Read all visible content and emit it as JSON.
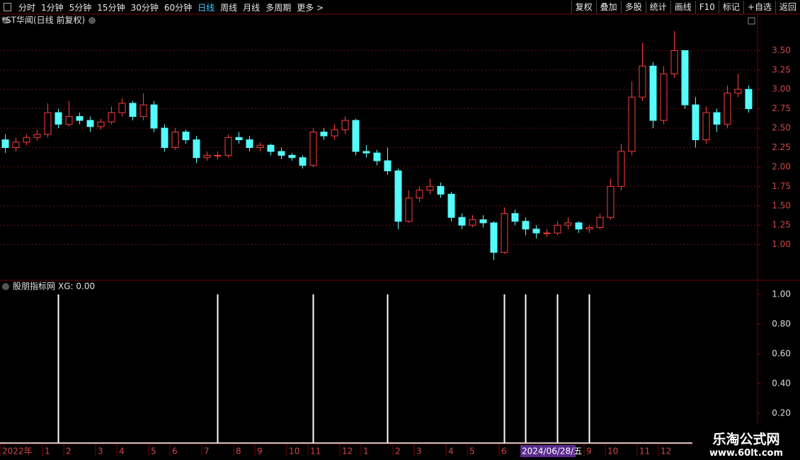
{
  "toolbar": {
    "left": [
      "分时",
      "1分钟",
      "5分钟",
      "15分钟",
      "30分钟",
      "60分钟",
      "日线",
      "周线",
      "月线",
      "多周期",
      "更多 >"
    ],
    "active": "日线",
    "right": [
      "复权",
      "叠加",
      "多股",
      "统计",
      "画线",
      "F10",
      "标记",
      "+自选",
      "返回"
    ]
  },
  "cursor_date": "2024/06/28/五",
  "watermark": {
    "title": "乐淘公式网",
    "url": "www.60lt.com"
  },
  "chart_data": [
    {
      "type": "candlestick",
      "title": "*ST华闻(日线 前复权)",
      "up_color": "#ff3c3c",
      "down_color": "#54fcfc",
      "grid": true,
      "ylim": [
        0.55,
        3.95
      ],
      "yticks": [
        {
          "value": 1,
          "label": "1.00"
        },
        {
          "value": 1.25,
          "label": "1.25"
        },
        {
          "value": 1.5,
          "label": "1.50"
        },
        {
          "value": 1.75,
          "label": "1.75"
        },
        {
          "value": 2,
          "label": "2.00"
        },
        {
          "value": 2.25,
          "label": "2.25"
        },
        {
          "value": 2.5,
          "label": "2.50"
        },
        {
          "value": 2.75,
          "label": "2.75"
        },
        {
          "value": 3,
          "label": "3.00"
        },
        {
          "value": 3.25,
          "label": "3.25"
        },
        {
          "value": 3.5,
          "label": "3.50"
        }
      ],
      "open": [
        2.35,
        2.25,
        2.32,
        2.38,
        2.42,
        2.7,
        2.55,
        2.65,
        2.6,
        2.52,
        2.58,
        2.7,
        2.82,
        2.65,
        2.8,
        2.5,
        2.25,
        2.45,
        2.35,
        2.12,
        2.15,
        2.15,
        2.38,
        2.35,
        2.25,
        2.28,
        2.2,
        2.15,
        2.12,
        2.02,
        2.45,
        2.4,
        2.48,
        2.6,
        2.2,
        2.18,
        2.08,
        1.95,
        1.3,
        1.6,
        1.7,
        1.75,
        1.65,
        1.35,
        1.25,
        1.32,
        1.28,
        0.9,
        1.4,
        1.3,
        1.2,
        1.15,
        1.15,
        1.25,
        1.28,
        1.2,
        1.22,
        1.35,
        1.75,
        2.2,
        2.9,
        3.3,
        2.6,
        3.2,
        3.5,
        2.8,
        2.35,
        2.7,
        2.55,
        2.95,
        3.0
      ],
      "high": [
        2.42,
        2.38,
        2.42,
        2.48,
        2.82,
        2.75,
        2.85,
        2.7,
        2.65,
        2.62,
        2.78,
        2.88,
        2.85,
        2.95,
        2.85,
        2.55,
        2.5,
        2.48,
        2.4,
        2.2,
        2.2,
        2.42,
        2.45,
        2.4,
        2.32,
        2.3,
        2.25,
        2.18,
        2.15,
        2.5,
        2.5,
        2.55,
        2.65,
        2.62,
        2.28,
        2.22,
        2.25,
        1.98,
        1.7,
        1.75,
        1.85,
        1.8,
        1.68,
        1.4,
        1.38,
        1.38,
        1.3,
        1.48,
        1.45,
        1.35,
        1.25,
        1.2,
        1.3,
        1.35,
        1.3,
        1.25,
        1.4,
        1.85,
        2.3,
        3.1,
        3.6,
        3.35,
        3.3,
        3.75,
        3.5,
        2.9,
        2.78,
        2.75,
        3.05,
        3.2,
        3.05
      ],
      "low": [
        2.18,
        2.2,
        2.28,
        2.34,
        2.38,
        2.5,
        2.52,
        2.55,
        2.45,
        2.48,
        2.55,
        2.65,
        2.6,
        2.6,
        2.45,
        2.2,
        2.22,
        2.3,
        2.05,
        2.08,
        2.1,
        2.12,
        2.3,
        2.2,
        2.2,
        2.15,
        2.1,
        2.08,
        1.98,
        2.0,
        2.35,
        2.35,
        2.42,
        2.15,
        2.12,
        2.02,
        1.9,
        1.2,
        1.28,
        1.55,
        1.65,
        1.6,
        1.3,
        1.2,
        1.22,
        1.22,
        0.8,
        0.88,
        1.25,
        1.12,
        1.08,
        1.1,
        1.12,
        1.2,
        1.15,
        1.15,
        1.2,
        1.32,
        1.7,
        2.15,
        2.85,
        2.5,
        2.55,
        3.15,
        2.75,
        2.25,
        2.3,
        2.45,
        2.5,
        2.9,
        2.7
      ],
      "close": [
        2.25,
        2.32,
        2.38,
        2.42,
        2.7,
        2.55,
        2.65,
        2.6,
        2.52,
        2.58,
        2.7,
        2.82,
        2.65,
        2.8,
        2.5,
        2.25,
        2.45,
        2.35,
        2.12,
        2.15,
        2.15,
        2.38,
        2.35,
        2.25,
        2.28,
        2.2,
        2.15,
        2.12,
        2.02,
        2.45,
        2.4,
        2.48,
        2.6,
        2.2,
        2.18,
        2.08,
        1.95,
        1.3,
        1.6,
        1.7,
        1.75,
        1.65,
        1.35,
        1.25,
        1.32,
        1.28,
        0.9,
        1.4,
        1.3,
        1.2,
        1.15,
        1.15,
        1.25,
        1.28,
        1.2,
        1.22,
        1.35,
        1.75,
        2.2,
        2.9,
        3.3,
        2.6,
        3.2,
        3.5,
        2.8,
        2.35,
        2.7,
        2.55,
        2.95,
        3.0,
        2.75
      ]
    },
    {
      "type": "bar",
      "title": "股朋指标网",
      "annotation": "XG: 0.00",
      "color": "#ffffff",
      "grid": false,
      "ylim": [
        0,
        1.09
      ],
      "yticks": [
        {
          "value": 0.2,
          "label": "0.20"
        },
        {
          "value": 0.4,
          "label": "0.40"
        },
        {
          "value": 0.6,
          "label": "0.60"
        },
        {
          "value": 0.8,
          "label": "0.80"
        },
        {
          "value": 1,
          "label": "1.00"
        }
      ],
      "values": [
        0,
        0,
        0,
        0,
        0,
        1,
        0,
        0,
        0,
        0,
        0,
        0,
        0,
        0,
        0,
        0,
        0,
        0,
        0,
        0,
        1,
        0,
        0,
        0,
        0,
        0,
        0,
        0,
        0,
        1,
        0,
        0,
        0,
        0,
        0,
        0,
        1,
        0,
        0,
        0,
        0,
        0,
        0,
        0,
        0,
        0,
        0,
        1,
        0,
        1,
        0,
        0,
        1,
        0,
        0,
        1,
        0,
        0,
        0,
        0,
        0,
        0,
        0,
        0,
        0,
        0,
        0,
        0,
        0,
        0,
        0
      ],
      "xticks": [
        {
          "value": 0,
          "label": "2022年"
        },
        {
          "value": 4,
          "label": "1"
        },
        {
          "value": 6,
          "label": "2"
        },
        {
          "value": 9,
          "label": "3"
        },
        {
          "value": 11,
          "label": "4"
        },
        {
          "value": 14,
          "label": "5"
        },
        {
          "value": 16,
          "label": "6"
        },
        {
          "value": 19,
          "label": "7"
        },
        {
          "value": 22,
          "label": "8"
        },
        {
          "value": 24,
          "label": "9"
        },
        {
          "value": 27,
          "label": "10"
        },
        {
          "value": 29,
          "label": "11"
        },
        {
          "value": 32,
          "label": "12"
        },
        {
          "value": 34,
          "label": "1"
        },
        {
          "value": 37,
          "label": "2"
        },
        {
          "value": 39,
          "label": "3"
        },
        {
          "value": 42,
          "label": "4"
        },
        {
          "value": 44,
          "label": "5"
        },
        {
          "value": 47,
          "label": "6"
        },
        {
          "value": 55,
          "label": "9"
        },
        {
          "value": 57,
          "label": "10"
        },
        {
          "value": 60,
          "label": "11"
        },
        {
          "value": 62,
          "label": "12"
        }
      ]
    }
  ]
}
